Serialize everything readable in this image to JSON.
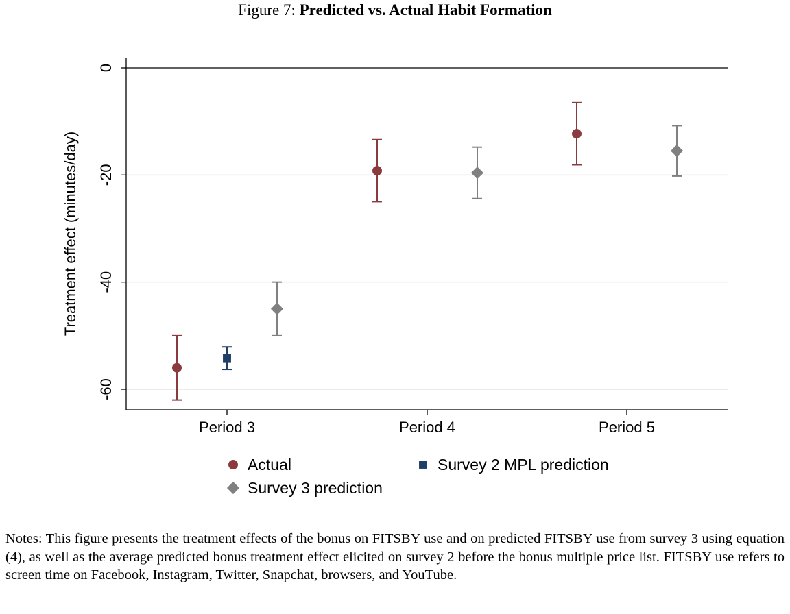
{
  "figure": {
    "label": "Figure 7:",
    "title": "Predicted vs. Actual Habit Formation"
  },
  "chart_data": {
    "type": "scatter",
    "title": "Predicted vs. Actual Habit Formation",
    "ylabel": "Treatment effect (minutes/day)",
    "xlabel": "",
    "ylim": [
      -64,
      0
    ],
    "yticks": [
      0,
      -20,
      -40,
      -60
    ],
    "categories": [
      "Period 3",
      "Period 4",
      "Period 5"
    ],
    "grid": "horizontal",
    "legend_position": "bottom",
    "series": [
      {
        "name": "Actual",
        "marker": "circle",
        "color": "#8b3a3e",
        "points": [
          {
            "category": "Period 3",
            "value": -56.0,
            "ci": [
              -62.0,
              -50.0
            ]
          },
          {
            "category": "Period 4",
            "value": -19.2,
            "ci": [
              -25.0,
              -13.4
            ]
          },
          {
            "category": "Period 5",
            "value": -12.3,
            "ci": [
              -18.1,
              -6.5
            ]
          }
        ]
      },
      {
        "name": "Survey 2 MPL prediction",
        "marker": "square",
        "color": "#1f3f66",
        "points": [
          {
            "category": "Period 3",
            "value": -54.2,
            "ci": [
              -56.3,
              -52.1
            ]
          }
        ]
      },
      {
        "name": "Survey 3 prediction",
        "marker": "diamond",
        "color": "#808080",
        "points": [
          {
            "category": "Period 3",
            "value": -45.0,
            "ci": [
              -50.0,
              -40.0
            ]
          },
          {
            "category": "Period 4",
            "value": -19.6,
            "ci": [
              -24.4,
              -14.8
            ]
          },
          {
            "category": "Period 5",
            "value": -15.5,
            "ci": [
              -20.2,
              -10.8
            ]
          }
        ]
      }
    ]
  },
  "notes": "Notes: This figure presents the treatment effects of the bonus on FITSBY use and on predicted FITSBY use from survey 3 using equation (4), as well as the average predicted bonus treatment effect elicited on survey 2 before the bonus multiple price list. FITSBY use refers to screen time on Facebook, Instagram, Twitter, Snapchat, browsers, and YouTube."
}
